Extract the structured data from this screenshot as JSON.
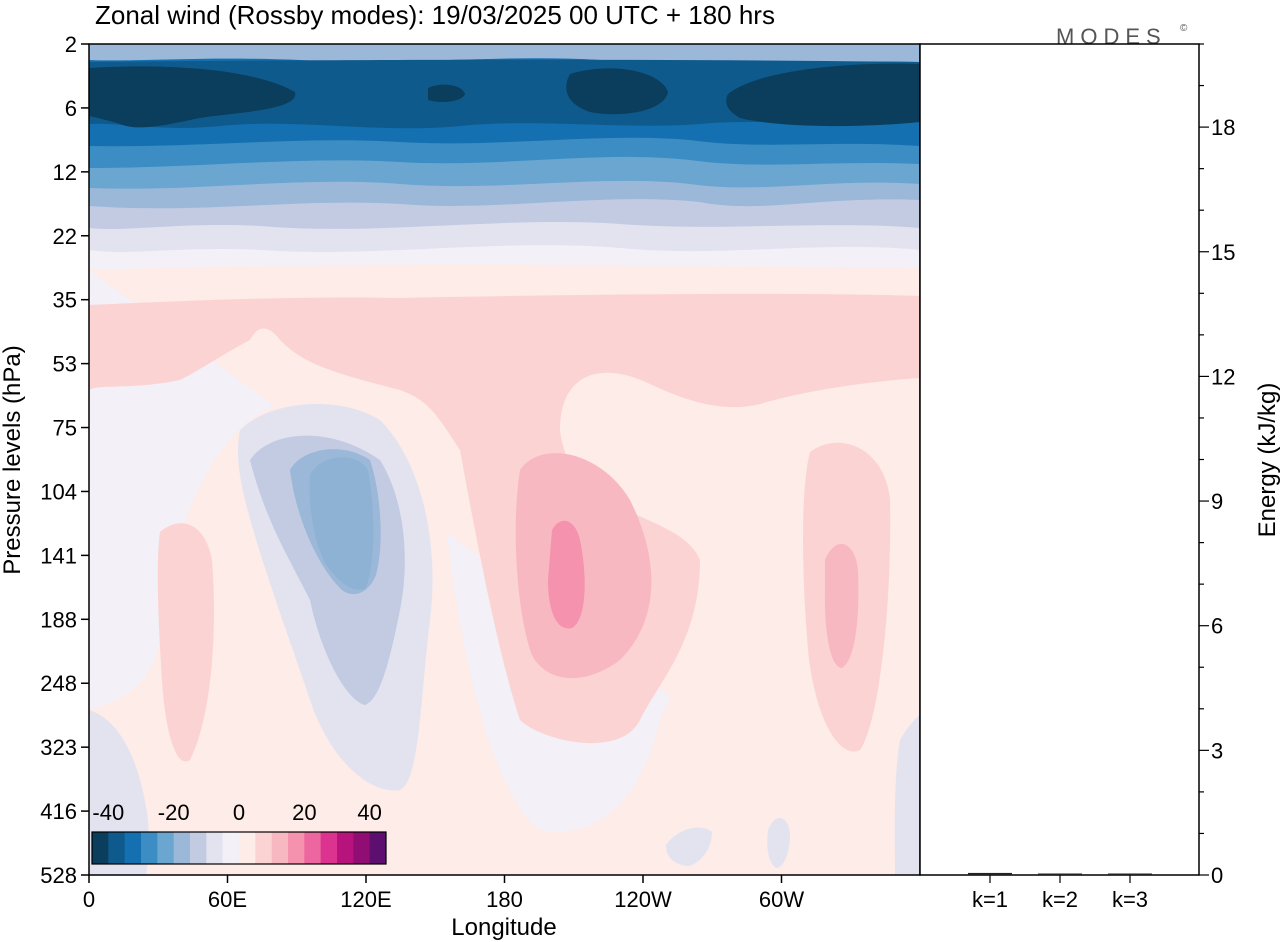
{
  "chart_data": {
    "type": "heatmap",
    "title": "Zonal wind (Rossby modes):  19/03/2025  00 UTC  + 180 hrs",
    "logo": "MODES",
    "xlabel": "Longitude",
    "ylabel": "Pressure levels (hPa)",
    "y2label": "Energy (kJ/kg)",
    "x_ticks": [
      "0",
      "60E",
      "120E",
      "180",
      "120W",
      "60W"
    ],
    "x_ticks_deg": [
      0,
      60,
      120,
      180,
      240,
      300
    ],
    "x_range_deg": [
      0,
      360
    ],
    "y_ticks": [
      "2",
      "6",
      "12",
      "22",
      "35",
      "53",
      "75",
      "104",
      "141",
      "188",
      "248",
      "323",
      "416",
      "528"
    ],
    "energy_ticks": [
      "0",
      "3",
      "6",
      "9",
      "12",
      "15",
      "18"
    ],
    "energy_ylim": [
      0,
      20
    ],
    "bar_categories": [
      "k=1",
      "k=2",
      "k=3"
    ],
    "bar_values": [
      0.05,
      0.03,
      0.02
    ],
    "colorbar": {
      "labels": [
        "-40",
        "-20",
        "0",
        "20",
        "40"
      ],
      "label_values": [
        -40,
        -20,
        0,
        20,
        40
      ],
      "range": [
        -45,
        45
      ],
      "colors": [
        "#0b3d5c",
        "#0f5a8c",
        "#1470b0",
        "#3b8dc3",
        "#6aa6d0",
        "#9bb8d8",
        "#c3cbe3",
        "#e3e3f0",
        "#f3f0f7",
        "#fdece8",
        "#fbd3d3",
        "#f8b8c2",
        "#f592ae",
        "#ee66a0",
        "#dc3290",
        "#b8127d",
        "#900d74",
        "#5c0f6f"
      ]
    },
    "field_features": [
      {
        "kind": "easterly jet",
        "level_range": [
          2,
          12
        ],
        "value": -40
      },
      {
        "kind": "negative core",
        "lon": 110,
        "level": 120,
        "value": -15
      },
      {
        "kind": "positive core",
        "lon": 195,
        "level": 150,
        "value": 20
      },
      {
        "kind": "positive core",
        "lon": 330,
        "level": 180,
        "value": 13
      },
      {
        "kind": "positive core",
        "lon": 40,
        "level": 170,
        "value": 8
      }
    ]
  }
}
